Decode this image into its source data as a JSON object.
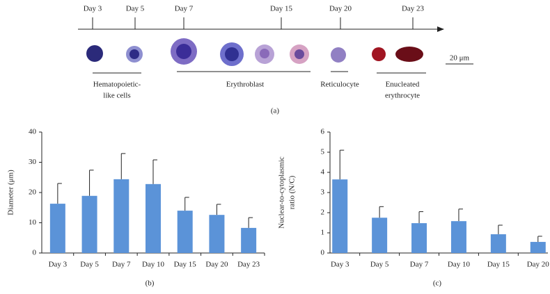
{
  "timeline": {
    "days": [
      "Day 3",
      "Day 5",
      "Day 7",
      "Day 15",
      "Day 20",
      "Day 23"
    ],
    "scale_bar": "20 μm",
    "groups": [
      [
        "Hematopoietic-",
        "like cells"
      ],
      [
        "Erythroblast"
      ],
      [
        "Reticulocyte"
      ],
      [
        "Enucleated",
        "erythrocyte"
      ]
    ],
    "caption": "(a)"
  },
  "chart_data": [
    {
      "type": "bar",
      "ylabel": [
        "Diameter (μm)"
      ],
      "caption": "(b)",
      "categories": [
        "Day 3",
        "Day 5",
        "Day 7",
        "Day 10",
        "Day 15",
        "Day 20",
        "Day 23"
      ],
      "values": [
        16.3,
        18.9,
        24.4,
        22.8,
        14.0,
        12.6,
        8.3
      ],
      "errors": [
        6.7,
        8.5,
        8.5,
        8.0,
        4.4,
        3.5,
        3.4
      ],
      "color": "#5b93d8",
      "ylim": [
        0,
        40
      ],
      "yticks": [
        0,
        10,
        20,
        30,
        40
      ]
    },
    {
      "type": "bar",
      "ylabel": [
        "Nuclear-to-cytoplasmic",
        "ratio (N/C)"
      ],
      "caption": "(c)",
      "categories": [
        "Day 3",
        "Day 5",
        "Day 7",
        "Day 10",
        "Day 15",
        "Day 20"
      ],
      "values": [
        3.65,
        1.75,
        1.48,
        1.58,
        0.93,
        0.55
      ],
      "errors": [
        1.45,
        0.55,
        0.57,
        0.6,
        0.45,
        0.28
      ],
      "color": "#5b93d8",
      "ylim": [
        0,
        6
      ],
      "yticks": [
        0,
        1,
        2,
        3,
        4,
        5,
        6
      ]
    }
  ]
}
